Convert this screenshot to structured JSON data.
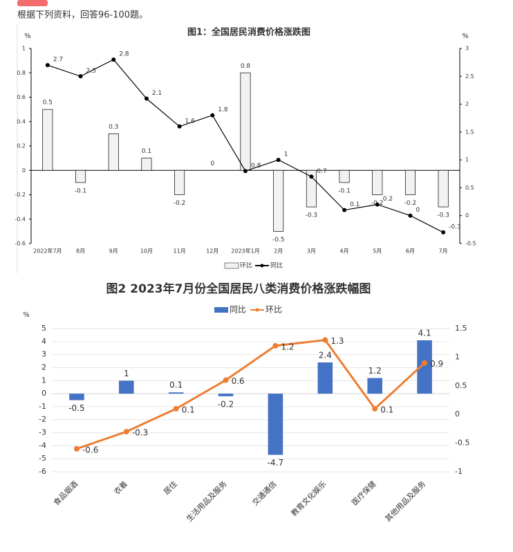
{
  "instruction": "根据下列资料，回答96-100题。",
  "chart_data": [
    {
      "type": "combo",
      "title": "图1：全国居民消费价格涨跌图",
      "ylabel": "%",
      "y2label": "%",
      "categories": [
        "2022年7月",
        "8月",
        "9月",
        "10月",
        "11月",
        "12月",
        "2023年1月",
        "2月",
        "3月",
        "4月",
        "5月",
        "6月",
        "7月"
      ],
      "series": [
        {
          "name": "环比",
          "type": "bar",
          "axis": "y",
          "color": "#f2f2f2",
          "values": [
            0.5,
            -0.1,
            0.3,
            0.1,
            -0.2,
            0,
            0.8,
            -0.5,
            -0.3,
            -0.1,
            -0.2,
            -0.2,
            -0.3
          ]
        },
        {
          "name": "同比",
          "type": "line",
          "axis": "y2",
          "color": "#000000",
          "values": [
            2.7,
            2.5,
            2.8,
            2.1,
            1.6,
            1.8,
            0.8,
            1,
            0.7,
            0.1,
            0.2,
            0,
            -0.3
          ]
        }
      ],
      "ylim": [
        -0.6,
        1
      ],
      "yticks": [
        -0.6,
        -0.4,
        -0.2,
        0,
        0.2,
        0.4,
        0.6,
        0.8,
        1
      ],
      "y2lim": [
        -0.5,
        3
      ],
      "y2ticks": [
        -0.5,
        0,
        0.5,
        1,
        1.5,
        2,
        2.5,
        3
      ],
      "grid": false,
      "legend": "bottom"
    },
    {
      "type": "combo",
      "title": "图2 2023年7月份全国居民八类消费价格涨跌幅图",
      "ylabel": "%",
      "categories": [
        "食品烟酒",
        "衣着",
        "居住",
        "生活用品及服务",
        "交通通信",
        "教育文化娱乐",
        "医疗保健",
        "其他用品及服务"
      ],
      "series": [
        {
          "name": "同比",
          "type": "bar",
          "axis": "y",
          "color": "#4472c4",
          "values": [
            -0.5,
            1,
            0.1,
            -0.2,
            -4.7,
            2.4,
            1.2,
            4.1
          ]
        },
        {
          "name": "环比",
          "type": "line",
          "axis": "y2",
          "color": "#ed7d31",
          "values": [
            -0.6,
            -0.3,
            0.1,
            0.6,
            1.2,
            1.3,
            0.1,
            0.9
          ]
        }
      ],
      "ylim": [
        -6,
        5
      ],
      "yticks": [
        -6,
        -5,
        -4,
        -3,
        -2,
        -1,
        0,
        1,
        2,
        3,
        4,
        5
      ],
      "y2lim": [
        -1,
        1.5
      ],
      "y2ticks": [
        -1,
        -0.5,
        0,
        0.5,
        1,
        1.5
      ],
      "grid": true,
      "legend": "top"
    }
  ]
}
